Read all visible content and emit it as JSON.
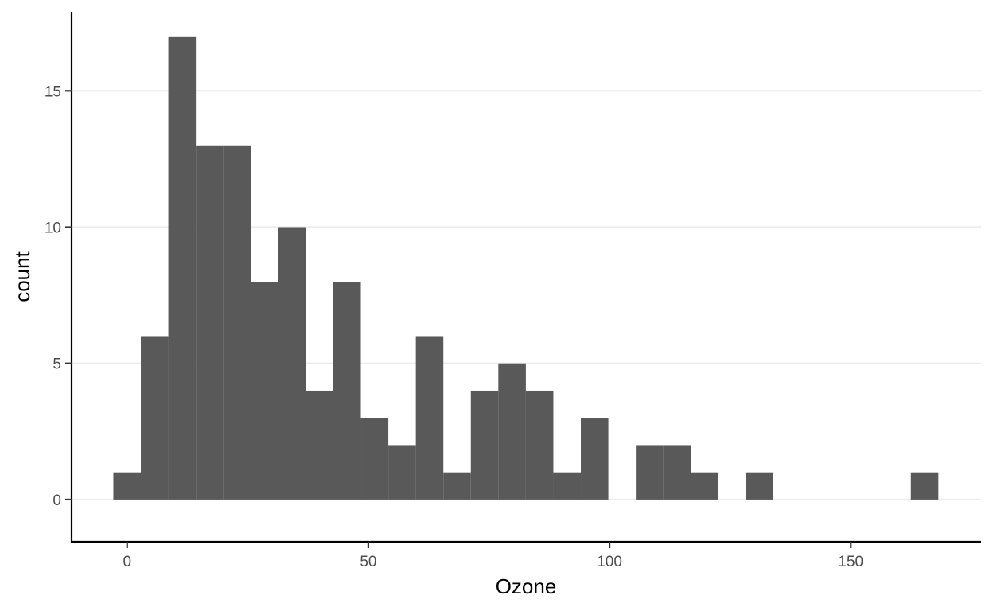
{
  "chart_data": {
    "type": "bar",
    "title": "",
    "xlabel": "Ozone",
    "ylabel": "count",
    "bin_width": 5.7,
    "bars": [
      {
        "x0": -2.85,
        "x1": 2.85,
        "count": 1
      },
      {
        "x0": 2.85,
        "x1": 8.55,
        "count": 6
      },
      {
        "x0": 8.55,
        "x1": 14.25,
        "count": 17
      },
      {
        "x0": 14.25,
        "x1": 19.95,
        "count": 13
      },
      {
        "x0": 19.95,
        "x1": 25.65,
        "count": 13
      },
      {
        "x0": 25.65,
        "x1": 31.35,
        "count": 8
      },
      {
        "x0": 31.35,
        "x1": 37.05,
        "count": 10
      },
      {
        "x0": 37.05,
        "x1": 42.75,
        "count": 4
      },
      {
        "x0": 42.75,
        "x1": 48.45,
        "count": 8
      },
      {
        "x0": 48.45,
        "x1": 54.15,
        "count": 3
      },
      {
        "x0": 54.15,
        "x1": 59.85,
        "count": 2
      },
      {
        "x0": 59.85,
        "x1": 65.55,
        "count": 6
      },
      {
        "x0": 65.55,
        "x1": 71.25,
        "count": 1
      },
      {
        "x0": 71.25,
        "x1": 76.95,
        "count": 4
      },
      {
        "x0": 76.95,
        "x1": 82.65,
        "count": 5
      },
      {
        "x0": 82.65,
        "x1": 88.35,
        "count": 4
      },
      {
        "x0": 88.35,
        "x1": 94.05,
        "count": 1
      },
      {
        "x0": 94.05,
        "x1": 99.75,
        "count": 3
      },
      {
        "x0": 99.75,
        "x1": 105.45,
        "count": 0
      },
      {
        "x0": 105.45,
        "x1": 111.15,
        "count": 2
      },
      {
        "x0": 111.15,
        "x1": 116.85,
        "count": 2
      },
      {
        "x0": 116.85,
        "x1": 122.55,
        "count": 1
      },
      {
        "x0": 122.55,
        "x1": 128.25,
        "count": 0
      },
      {
        "x0": 128.25,
        "x1": 133.95,
        "count": 1
      },
      {
        "x0": 133.95,
        "x1": 139.65,
        "count": 0
      },
      {
        "x0": 139.65,
        "x1": 145.35,
        "count": 0
      },
      {
        "x0": 145.35,
        "x1": 151.05,
        "count": 0
      },
      {
        "x0": 151.05,
        "x1": 156.75,
        "count": 0
      },
      {
        "x0": 156.75,
        "x1": 162.45,
        "count": 0
      },
      {
        "x0": 162.45,
        "x1": 168.15,
        "count": 1
      }
    ],
    "xlim": [
      -11.5,
      177.0
    ],
    "ylim": [
      -1.55,
      17.9
    ],
    "x_ticks": [
      0,
      50,
      100,
      150
    ],
    "y_ticks": [
      0,
      5,
      10,
      15
    ],
    "x_tick_labels": [
      "0",
      "50",
      "100",
      "150"
    ],
    "y_tick_labels": [
      "0",
      "5",
      "10",
      "15"
    ],
    "grid": "horizontal-major",
    "bar_color": "#595959",
    "grid_color": "#ebebeb",
    "axis_color": "#000000",
    "background": "#ffffff"
  }
}
